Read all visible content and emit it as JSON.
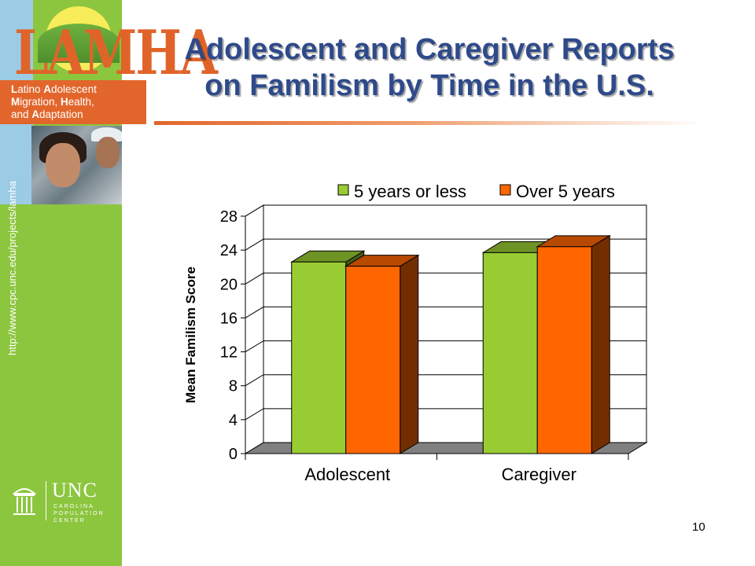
{
  "sidebar": {
    "logo_text": "LAMHA",
    "logo_lines": [
      {
        "first": "L",
        "rest": "atino "
      },
      {
        "first": "A",
        "rest": "dolescent"
      },
      {
        "first": "M",
        "rest": "igration, "
      },
      {
        "first": "H",
        "rest": "ealth,"
      },
      {
        "first": "and ",
        "rest": ""
      },
      {
        "first": "A",
        "rest": "daptation"
      }
    ],
    "url": "http://www.cpc.unc.edu/projects/lamha",
    "unc_logo_text": "UNC",
    "unc_subtext": [
      "CAROLINA",
      "POPULATION",
      "CENTER"
    ]
  },
  "slide": {
    "title_line1": "Adolescent and Caregiver Reports",
    "title_line2": "on Familism by Time in the U.S.",
    "number": "10"
  },
  "colors": {
    "sidebar_green": "#8cc63f",
    "title_blue": "#2e4a8a",
    "accent_orange": "#e2662c",
    "series1": "#99cc33",
    "series2": "#ff6600"
  },
  "chart_data": {
    "type": "bar",
    "categories": [
      "Adolescent",
      "Caregiver"
    ],
    "series": [
      {
        "name": "5 years or less",
        "values": [
          22.6,
          23.7
        ],
        "color": "#99cc33"
      },
      {
        "name": "Over 5 years",
        "values": [
          22.1,
          24.4
        ],
        "color": "#ff6600"
      }
    ],
    "title": "",
    "xlabel": "",
    "ylabel": "Mean Familism Score",
    "ylim": [
      0,
      28
    ],
    "yticks": [
      0,
      4,
      8,
      12,
      16,
      20,
      24,
      28
    ],
    "grid": true,
    "legend": "top",
    "three_d": true
  }
}
